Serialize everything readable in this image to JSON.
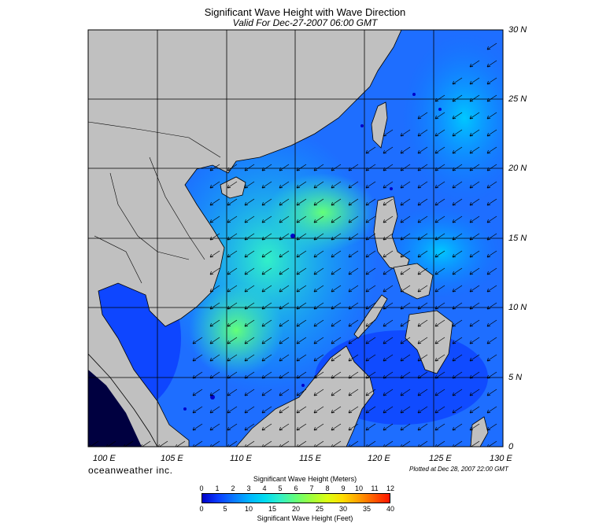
{
  "title": "Significant Wave Height with Wave Direction",
  "subtitle": "Valid For Dec-27-2007 06:00 GMT",
  "latitude_labels": [
    "30 N",
    "25 N",
    "20 N",
    "15 N",
    "10 N",
    "5 N",
    "0"
  ],
  "longitude_labels": [
    "100 E",
    "105 E",
    "110 E",
    "115 E",
    "120 E",
    "125 E",
    "130 E"
  ],
  "branding": "oceanweather inc.",
  "plotted_note": "Plotted at Dec 28, 2007 22:00 GMT",
  "colorbar": {
    "top_label": "Significant Wave Height (Meters)",
    "bottom_label": "Significant Wave Height (Feet)",
    "meters_ticks": [
      "0",
      "1",
      "2",
      "3",
      "4",
      "5",
      "6",
      "7",
      "8",
      "9",
      "10",
      "11",
      "12"
    ],
    "feet_ticks": [
      "0",
      "5",
      "10",
      "15",
      "20",
      "25",
      "30",
      "35",
      "40"
    ],
    "colors": [
      "#0000c8",
      "#0a3cff",
      "#0a78ff",
      "#00b4ff",
      "#00dcf0",
      "#32f0c8",
      "#64ff78",
      "#a0ff3c",
      "#dcff14",
      "#ffdc00",
      "#ffa000",
      "#ff5a00",
      "#ff1400"
    ]
  },
  "map": {
    "land_color": "#c0c0c0",
    "ocean_color": "#1e6eff",
    "grid_color": "#000000",
    "wave_direction": "from northeast to southwest"
  }
}
